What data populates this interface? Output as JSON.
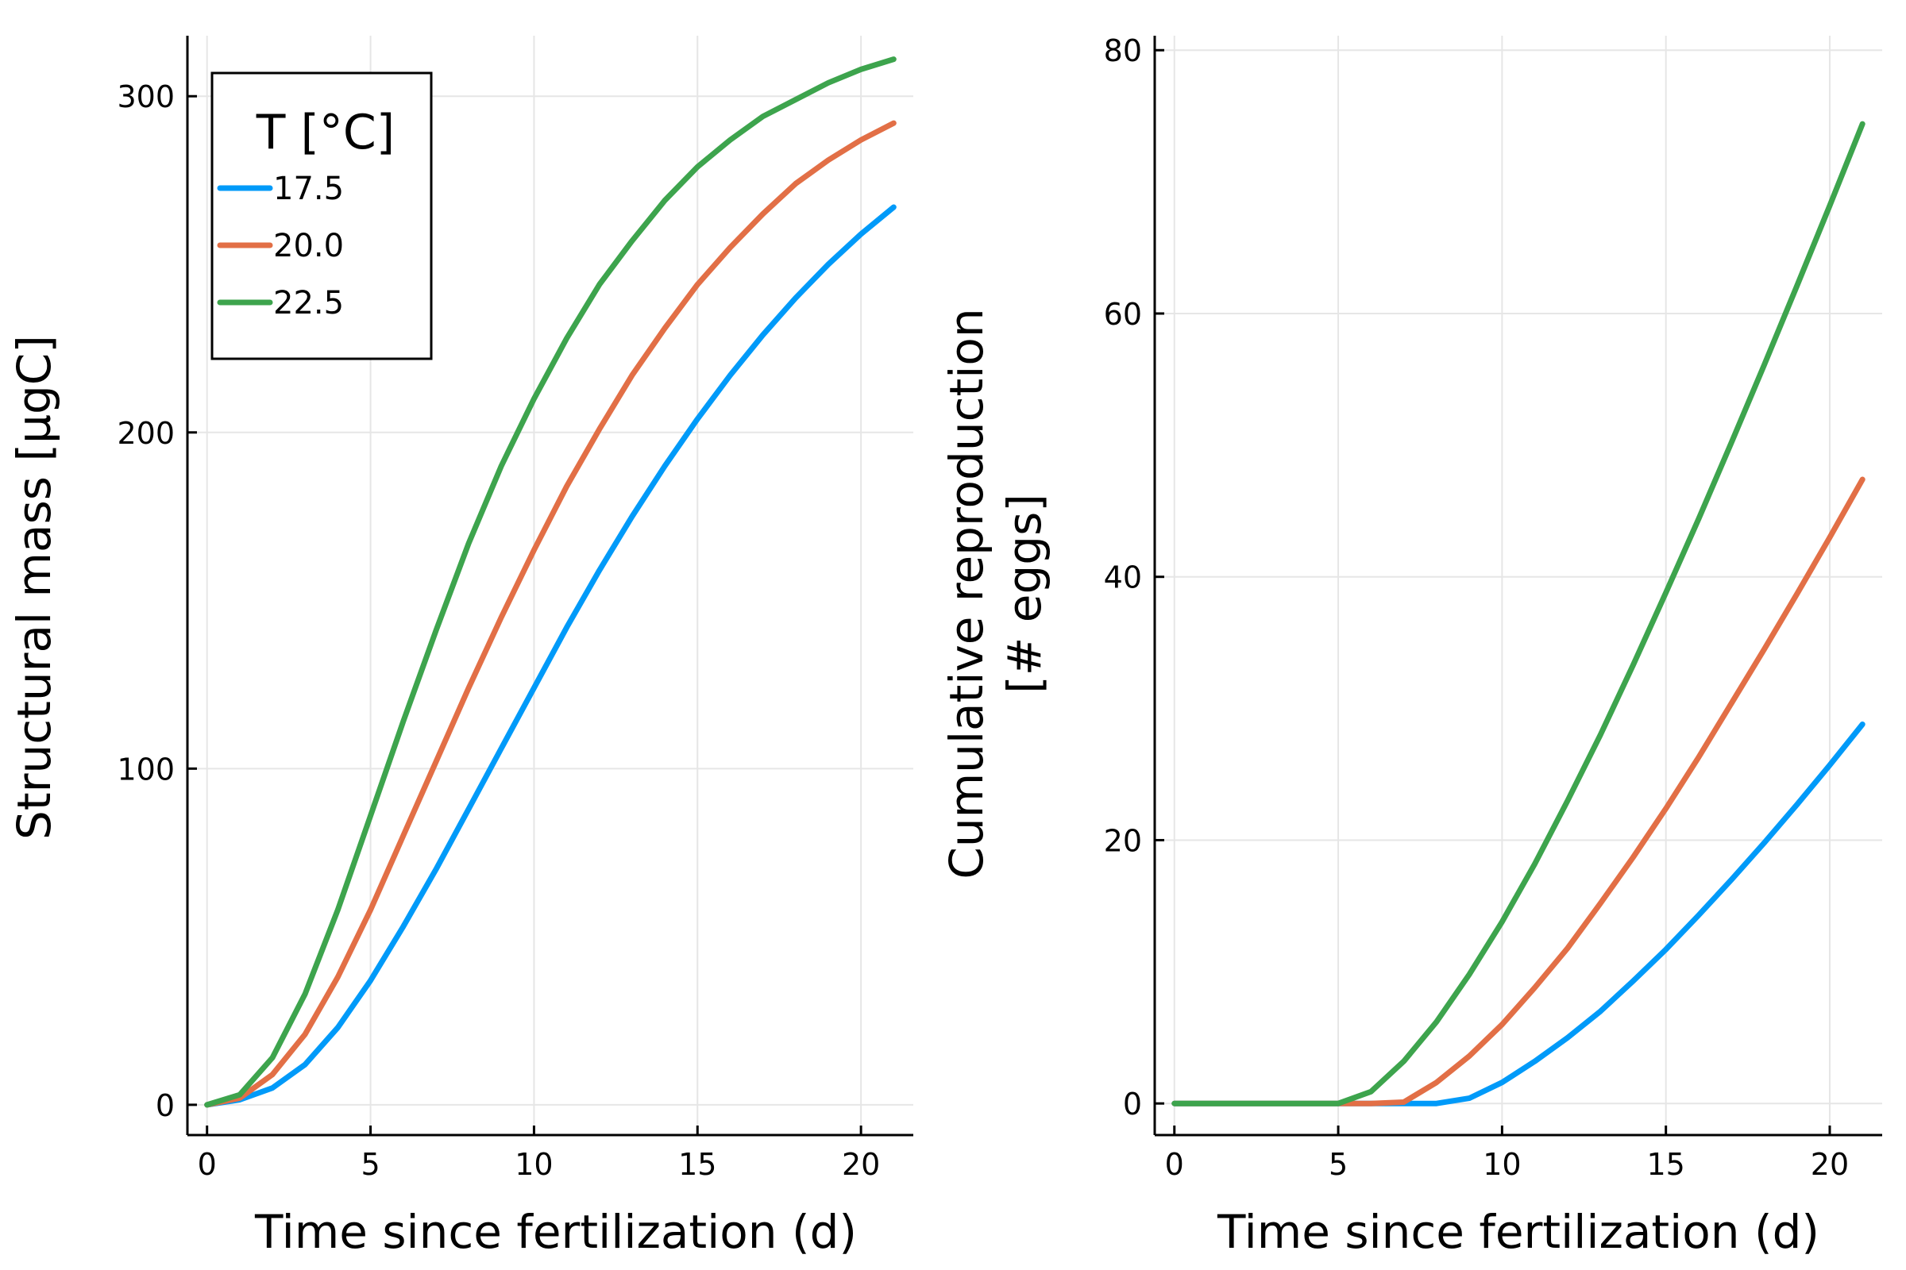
{
  "chart_data": [
    {
      "type": "line",
      "title": "",
      "xlabel": "Time since fertilization (d)",
      "ylabel": "Structural mass [µgC]",
      "xlim": [
        -0.6,
        21.6
      ],
      "ylim": [
        -9,
        318
      ],
      "xticks": [
        0,
        5,
        10,
        15,
        20
      ],
      "yticks": [
        0,
        100,
        200,
        300
      ],
      "xtick_labels": [
        "0",
        "5",
        "10",
        "15",
        "20"
      ],
      "ytick_labels": [
        "0",
        "100",
        "200",
        "300"
      ],
      "grid": true,
      "legend": {
        "title": "T [°C]",
        "placement": "top-left",
        "entries": [
          "17.5",
          "20.0",
          "22.5"
        ]
      },
      "x": [
        0,
        1,
        2,
        3,
        4,
        5,
        6,
        7,
        8,
        9,
        10,
        11,
        12,
        13,
        14,
        15,
        16,
        17,
        18,
        19,
        20,
        21
      ],
      "series": [
        {
          "name": "17.5",
          "color": "#009af9",
          "values": [
            0,
            1.5,
            5,
            12,
            23,
            37,
            53,
            70,
            88,
            106,
            124,
            142,
            159,
            175,
            190,
            204,
            217,
            229,
            240,
            250,
            259,
            267
          ]
        },
        {
          "name": "20.0",
          "color": "#e26f46",
          "values": [
            0,
            2,
            9,
            21,
            38,
            58,
            80,
            102,
            124,
            145,
            165,
            184,
            201,
            217,
            231,
            244,
            255,
            265,
            274,
            281,
            287,
            292
          ]
        },
        {
          "name": "22.5",
          "color": "#3da44d",
          "values": [
            0,
            3,
            14,
            33,
            58,
            86,
            114,
            141,
            167,
            190,
            210,
            228,
            244,
            257,
            269,
            279,
            287,
            294,
            299,
            304,
            308,
            311
          ]
        }
      ]
    },
    {
      "type": "line",
      "title": "",
      "xlabel": "Time since fertilization (d)",
      "ylabel": [
        "Cumulative reproduction",
        "[# eggs]"
      ],
      "xlim": [
        -0.6,
        21.6
      ],
      "ylim": [
        -2.4,
        81.1
      ],
      "xticks": [
        0,
        5,
        10,
        15,
        20
      ],
      "yticks": [
        0,
        20,
        40,
        60,
        80
      ],
      "xtick_labels": [
        "0",
        "5",
        "10",
        "15",
        "20"
      ],
      "ytick_labels": [
        "0",
        "20",
        "40",
        "60",
        "80"
      ],
      "grid": true,
      "x": [
        0,
        1,
        2,
        3,
        4,
        5,
        6,
        7,
        8,
        9,
        10,
        11,
        12,
        13,
        14,
        15,
        16,
        17,
        18,
        19,
        20,
        21
      ],
      "series": [
        {
          "name": "17.5",
          "color": "#009af9",
          "values": [
            0,
            0,
            0,
            0,
            0,
            0,
            0,
            0,
            0,
            0.4,
            1.6,
            3.2,
            5,
            7,
            9.3,
            11.7,
            14.3,
            17,
            19.8,
            22.7,
            25.7,
            28.8
          ]
        },
        {
          "name": "20.0",
          "color": "#e26f46",
          "values": [
            0,
            0,
            0,
            0,
            0,
            0,
            0,
            0.1,
            1.6,
            3.6,
            6,
            8.8,
            11.8,
            15.2,
            18.7,
            22.4,
            26.3,
            30.4,
            34.5,
            38.7,
            43,
            47.4
          ]
        },
        {
          "name": "22.5",
          "color": "#3da44d",
          "values": [
            0,
            0,
            0,
            0,
            0,
            0,
            0.9,
            3.2,
            6.2,
            9.8,
            13.8,
            18.2,
            23,
            28,
            33.3,
            38.8,
            44.4,
            50.2,
            56.1,
            62.1,
            68.2,
            74.4
          ]
        }
      ]
    }
  ]
}
